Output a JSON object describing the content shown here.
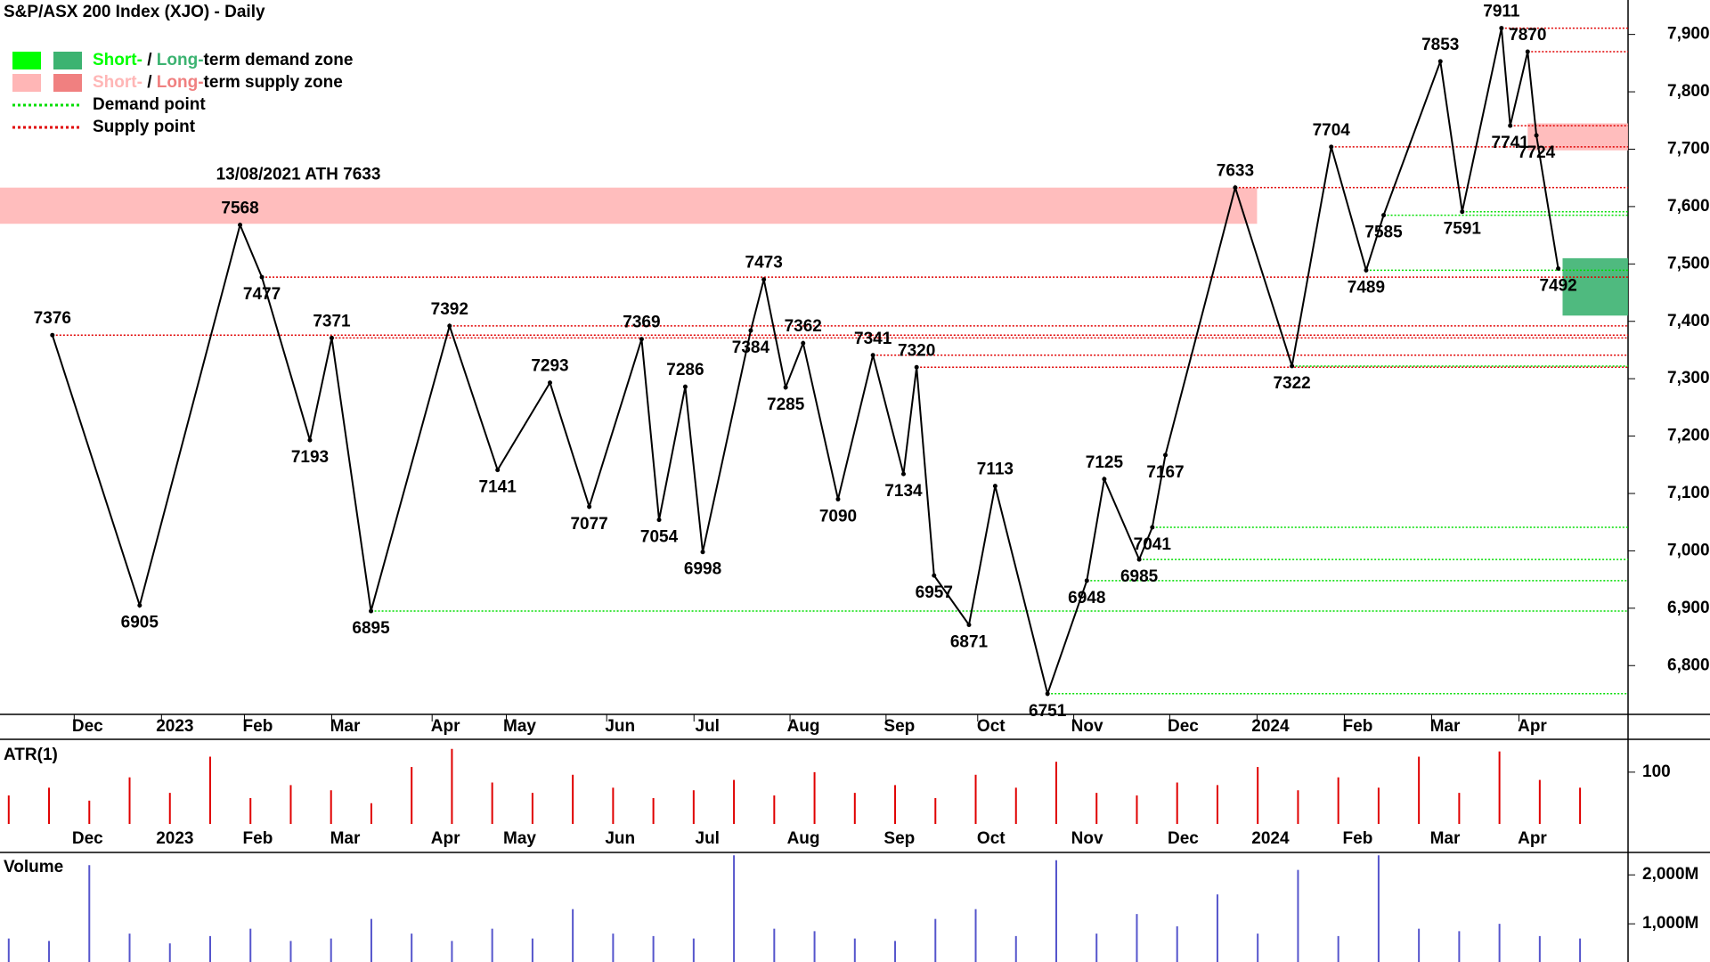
{
  "chart_data": {
    "type": "line",
    "title": "S&P/ASX 200 Index (XJO) - Daily",
    "annotation": "13/08/2021 ATH 7633",
    "legend": [
      {
        "parts": [
          "Short-",
          " / ",
          "Long-",
          "term demand zone"
        ],
        "colors": [
          "#00ff00",
          "#3cb371"
        ]
      },
      {
        "parts": [
          "Short-",
          " / ",
          "Long-",
          "term supply zone"
        ],
        "colors": [
          "#ffb6b6",
          "#f08080"
        ]
      },
      {
        "parts": [
          "Demand point"
        ],
        "colors": [
          "#00dd00"
        ]
      },
      {
        "parts": [
          "Supply point"
        ],
        "colors": [
          "#e00000"
        ]
      }
    ],
    "xlim": [
      0,
      373
    ],
    "xticks": [
      {
        "value": 17,
        "label": "Dec"
      },
      {
        "value": 37,
        "label": "2023"
      },
      {
        "value": 56,
        "label": "Feb"
      },
      {
        "value": 76,
        "label": "Mar"
      },
      {
        "value": 99,
        "label": "Apr"
      },
      {
        "value": 116,
        "label": "May"
      },
      {
        "value": 139,
        "label": "Jun"
      },
      {
        "value": 159,
        "label": "Jul"
      },
      {
        "value": 181,
        "label": "Aug"
      },
      {
        "value": 203,
        "label": "Sep"
      },
      {
        "value": 224,
        "label": "Oct"
      },
      {
        "value": 246,
        "label": "Nov"
      },
      {
        "value": 268,
        "label": "Dec"
      },
      {
        "value": 288,
        "label": "2024"
      },
      {
        "value": 308,
        "label": "Feb"
      },
      {
        "value": 328,
        "label": "Mar"
      },
      {
        "value": 348,
        "label": "Apr"
      }
    ],
    "ylim": [
      6715,
      7960
    ],
    "yticks": [
      {
        "value": 6800,
        "label": "6,800"
      },
      {
        "value": 6900,
        "label": "6,900"
      },
      {
        "value": 7000,
        "label": "7,000"
      },
      {
        "value": 7100,
        "label": "7,100"
      },
      {
        "value": 7200,
        "label": "7,200"
      },
      {
        "value": 7300,
        "label": "7,300"
      },
      {
        "value": 7400,
        "label": "7,400"
      },
      {
        "value": 7500,
        "label": "7,500"
      },
      {
        "value": 7600,
        "label": "7,600"
      },
      {
        "value": 7700,
        "label": "7,700"
      },
      {
        "value": 7800,
        "label": "7,800"
      },
      {
        "value": 7900,
        "label": "7,900"
      }
    ],
    "series": [
      {
        "name": "XJO",
        "color": "#000000",
        "x": [
          12,
          32,
          55,
          60,
          71,
          76,
          85,
          103,
          114,
          126,
          135,
          147,
          151,
          157,
          161,
          172,
          175,
          180,
          184,
          192,
          200,
          207,
          210,
          214,
          222,
          228,
          240,
          249,
          253,
          261,
          264,
          267,
          283,
          296,
          305,
          313,
          317,
          330,
          335,
          344,
          346,
          350,
          352,
          357
        ],
        "values": [
          7376,
          6905,
          7568,
          7477,
          7193,
          7371,
          6895,
          7392,
          7141,
          7293,
          7077,
          7369,
          7054,
          7286,
          6998,
          7384,
          7473,
          7285,
          7362,
          7090,
          7341,
          7134,
          7320,
          6957,
          6871,
          7113,
          6751,
          6948,
          7125,
          6985,
          7041,
          7167,
          7633,
          7322,
          7704,
          7489,
          7585,
          7853,
          7591,
          7911,
          7741,
          7870,
          7724,
          7492
        ]
      }
    ],
    "zones": [
      {
        "low": 7570,
        "high": 7633,
        "x": [
          0,
          288
        ],
        "color": "#ffb6b6"
      },
      {
        "low": 7698,
        "high": 7745,
        "x": [
          350,
          373
        ],
        "color": "#ffb6b6"
      },
      {
        "low": 7410,
        "high": 7510,
        "x": [
          358,
          373
        ],
        "color": "#3cb371"
      }
    ],
    "supply_points": [
      7911,
      7870,
      7741,
      7704,
      7633,
      7477,
      7392,
      7376,
      7371,
      7341,
      7320
    ],
    "demand_points": [
      7591,
      7585,
      7489,
      7322,
      7041,
      6985,
      6948,
      6895,
      6751
    ],
    "atr": {
      "label": "ATR(1)",
      "color": "#e00000",
      "ylim": [
        0,
        160
      ],
      "yticks": [
        100
      ],
      "values": [
        55,
        70,
        45,
        90,
        60,
        130,
        50,
        75,
        65,
        40,
        110,
        145,
        80,
        60,
        95,
        70,
        50,
        65,
        85,
        55,
        100,
        60,
        75,
        50,
        95,
        70,
        120,
        60,
        55,
        80,
        75,
        110,
        65,
        90,
        70,
        130,
        60,
        140,
        85,
        70
      ]
    },
    "volume": {
      "label": "Volume",
      "color": "#5555cc",
      "ylim": [
        220,
        2440
      ],
      "yticks": [
        {
          "value": 1000,
          "label": "1,000M"
        },
        {
          "value": 2000,
          "label": "2,000M"
        }
      ],
      "values": [
        700,
        650,
        2200,
        800,
        600,
        750,
        900,
        650,
        700,
        1100,
        800,
        650,
        900,
        700,
        1300,
        800,
        750,
        700,
        2400,
        900,
        850,
        700,
        650,
        1100,
        1300,
        750,
        2300,
        800,
        1200,
        950,
        1600,
        800,
        2100,
        750,
        2400,
        900,
        850,
        1000,
        750,
        700
      ]
    }
  }
}
